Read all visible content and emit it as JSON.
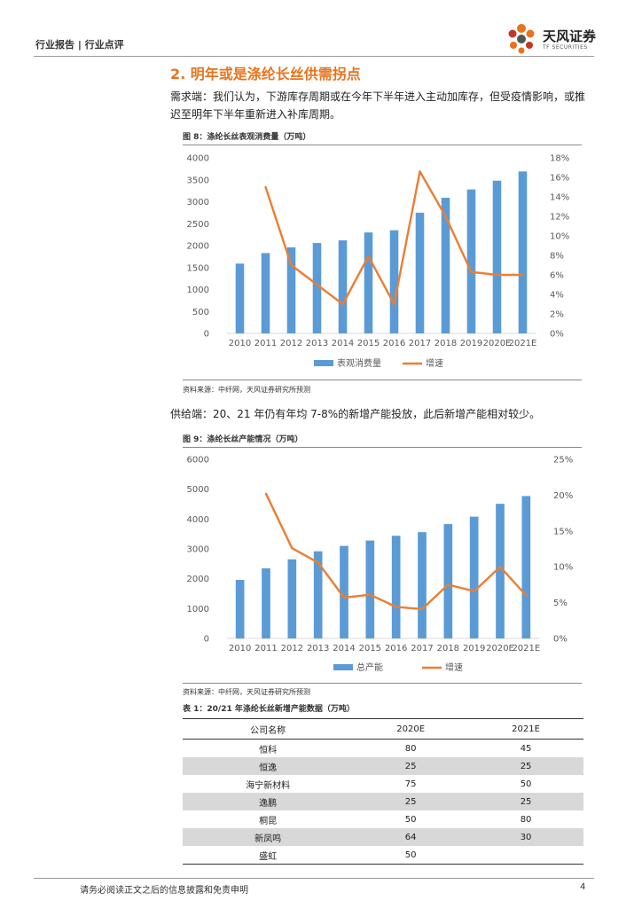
{
  "header": {
    "tag": "行业报告 | 行业点评",
    "logo_name": "天风证券",
    "logo_sub": "TF SECURITIES"
  },
  "section": {
    "title": "2. 明年或是涤纶长丝供需拐点"
  },
  "paragraphs": {
    "demand": "需求端：我们认为，下游库存周期或在今年下半年进入主动加库存，但受疫情影响，或推迟至明年下半年重新进入补库周期。",
    "supply": "供给端：20、21 年仍有年均 7-8%的新增产能投放，此后新增产能相对较少。"
  },
  "figure8": {
    "title": "图 8：涤纶长丝表观消费量（万吨）",
    "source": "资料来源：中纤网，天风证券研究所预测"
  },
  "figure9": {
    "title": "图 9：涤纶长丝产能情况（万吨）",
    "source": "资料来源：中纤网，天风证券研究所预测"
  },
  "chart_data": [
    {
      "type": "bar",
      "categories": [
        "2010",
        "2011",
        "2012",
        "2013",
        "2014",
        "2015",
        "2016",
        "2017",
        "2018",
        "2019",
        "2020E",
        "2021E"
      ],
      "series": [
        {
          "name": "表观消费量",
          "type": "bar",
          "axis": "left",
          "values": [
            1590,
            1830,
            1960,
            2060,
            2120,
            2300,
            2350,
            2750,
            3090,
            3280,
            3480,
            3690
          ]
        },
        {
          "name": "增速",
          "type": "line",
          "axis": "right",
          "values": [
            null,
            15.0,
            7.0,
            5.0,
            3.0,
            7.9,
            3.0,
            16.6,
            12.0,
            6.3,
            6.0,
            6.0
          ]
        }
      ],
      "yticks_left": [
        "0",
        "500",
        "1000",
        "1500",
        "2000",
        "2500",
        "3000",
        "3500",
        "4000"
      ],
      "yticks_right": [
        "0%",
        "2%",
        "4%",
        "6%",
        "8%",
        "10%",
        "12%",
        "14%",
        "16%",
        "18%"
      ],
      "ylim": [
        0,
        4000
      ],
      "ylim_right": [
        0,
        18
      ],
      "colors": {
        "bar": "#5B9BD5",
        "line": "#ED7D31"
      },
      "legend_position": "bottom"
    },
    {
      "type": "bar",
      "categories": [
        "2010",
        "2011",
        "2012",
        "2013",
        "2014",
        "2015",
        "2016",
        "2017",
        "2018",
        "2019",
        "2020E",
        "2021E"
      ],
      "series": [
        {
          "name": "总产能",
          "type": "bar",
          "axis": "left",
          "values": [
            1960,
            2350,
            2650,
            2920,
            3100,
            3280,
            3440,
            3560,
            3830,
            4080,
            4510,
            4770
          ]
        },
        {
          "name": "增速",
          "type": "line",
          "axis": "right",
          "values": [
            null,
            20.2,
            12.6,
            10.6,
            5.7,
            6.1,
            4.4,
            4.1,
            7.5,
            6.6,
            10.0,
            6.0
          ]
        }
      ],
      "yticks_left": [
        "0",
        "1000",
        "2000",
        "3000",
        "4000",
        "5000",
        "6000"
      ],
      "yticks_right": [
        "0%",
        "5%",
        "10%",
        "15%",
        "20%",
        "25%"
      ],
      "ylim": [
        0,
        6000
      ],
      "ylim_right": [
        0,
        25
      ],
      "colors": {
        "bar": "#5B9BD5",
        "line": "#ED7D31"
      },
      "legend_position": "bottom"
    }
  ],
  "table1": {
    "title": "表 1：20/21 年涤纶长丝新增产能数据（万吨）",
    "headers": [
      "公司名称",
      "2020E",
      "2021E"
    ],
    "rows": [
      [
        "恒科",
        "80",
        "45"
      ],
      [
        "恒逸",
        "25",
        "25"
      ],
      [
        "海宁新材料",
        "75",
        "50"
      ],
      [
        "逸鹏",
        "25",
        "25"
      ],
      [
        "桐昆",
        "50",
        "80"
      ],
      [
        "新凤鸣",
        "64",
        "30"
      ],
      [
        "盛虹",
        "50",
        ""
      ]
    ]
  },
  "footer": {
    "disclaimer": "请务必阅读正文之后的信息披露和免责申明",
    "page": "4"
  }
}
